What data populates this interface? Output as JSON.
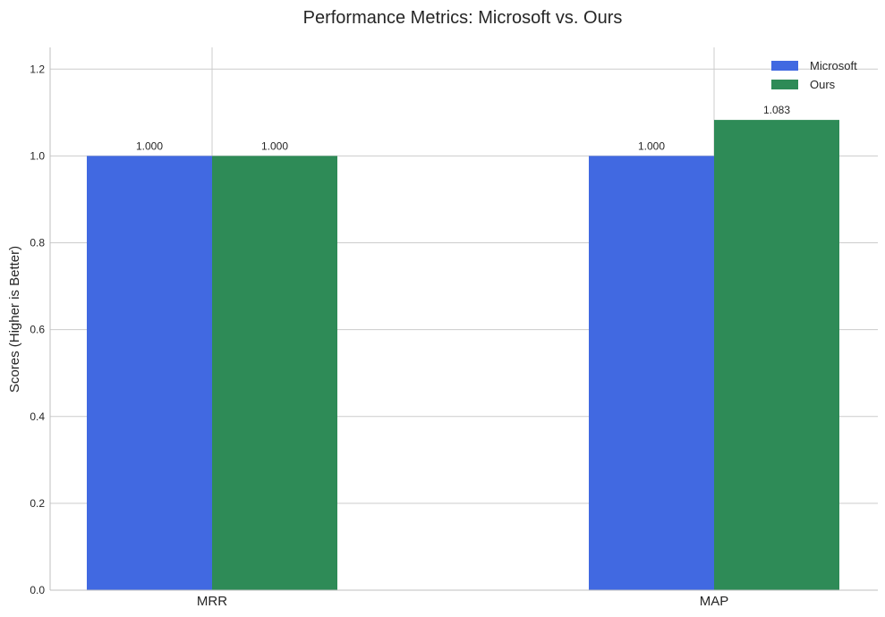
{
  "chart_data": {
    "type": "bar",
    "title": "Performance Metrics: Microsoft vs. Ours",
    "xlabel": "",
    "ylabel": "Scores (Higher is Better)",
    "categories": [
      "MRR",
      "MAP"
    ],
    "series": [
      {
        "name": "Microsoft",
        "values": [
          1.0,
          1.0
        ],
        "labels": [
          "1.000",
          "1.000"
        ],
        "color": "#4169e1"
      },
      {
        "name": "Ours",
        "values": [
          1.0,
          1.083
        ],
        "labels": [
          "1.000",
          "1.083"
        ],
        "color": "#2e8b57"
      }
    ],
    "ylim": [
      0,
      1.25
    ],
    "yticks": [
      "0.0",
      "0.2",
      "0.4",
      "0.6",
      "0.8",
      "1.0",
      "1.2"
    ],
    "grid": true,
    "legend_position": "top-right"
  }
}
